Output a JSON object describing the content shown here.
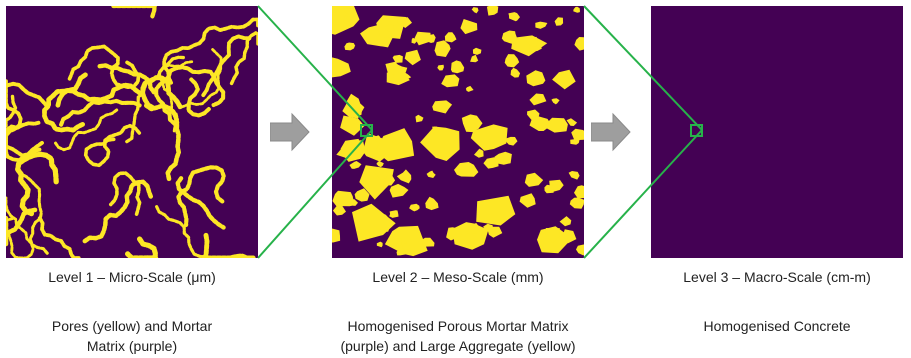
{
  "colors": {
    "matrix": "#440154",
    "inclusion": "#fde725",
    "zoom_lines": "#27b24a",
    "arrow": "#9e9e9e"
  },
  "levels": [
    {
      "title": "Level 1 – Micro-Scale (μm)",
      "description_line1": "Pores (yellow) and Mortar",
      "description_line2": "Matrix (purple)"
    },
    {
      "title": "Level 2 – Meso-Scale (mm)",
      "description_line1": "Homogenised Porous Mortar Matrix",
      "description_line2": "(purple) and Large Aggregate (yellow)"
    },
    {
      "title": "Level 3 – Macro-Scale (cm-m)",
      "description_line1": "Homogenised Concrete",
      "description_line2": ""
    }
  ],
  "icons": {
    "arrow_1": "right-arrow-icon",
    "arrow_2": "right-arrow-icon"
  }
}
